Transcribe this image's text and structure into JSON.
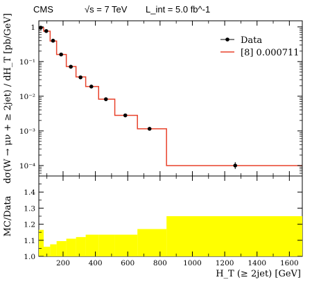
{
  "header": {
    "experiment": "CMS",
    "energy": "√s = 7 TeV",
    "lumi": "L_int = 5.0 fb^-1"
  },
  "chart_data": [
    {
      "type": "line",
      "panel": "main",
      "ylabel": "dσ(W → μν + ≥ 2jet) / dH_T [pb/GeV]",
      "yscale": "log",
      "ylim": [
        5e-05,
        1.5
      ],
      "xlim": [
        50,
        1680
      ],
      "legend_position": "top-right",
      "y_ticks": [
        {
          "value": 1,
          "label": "1"
        },
        {
          "value": 0.1,
          "label": "10⁻¹"
        },
        {
          "value": 0.01,
          "label": "10⁻²"
        },
        {
          "value": 0.001,
          "label": "10⁻³"
        },
        {
          "value": 0.0001,
          "label": "10⁻⁴"
        }
      ],
      "legend": [
        {
          "label": "Data",
          "marker": "point-with-errorbar",
          "color": "#000000"
        },
        {
          "label": "[8] 0.000711",
          "marker": "line",
          "color": "#e8412a"
        }
      ],
      "series": [
        {
          "name": "[8] 0.000711",
          "kind": "step",
          "color": "#e8412a",
          "bins": [
            {
              "x0": 50,
              "x1": 80,
              "y": 0.95
            },
            {
              "x0": 80,
              "x1": 120,
              "y": 0.75
            },
            {
              "x0": 120,
              "x1": 160,
              "y": 0.39
            },
            {
              "x0": 160,
              "x1": 220,
              "y": 0.16
            },
            {
              "x0": 220,
              "x1": 280,
              "y": 0.072
            },
            {
              "x0": 280,
              "x1": 340,
              "y": 0.036
            },
            {
              "x0": 340,
              "x1": 420,
              "y": 0.019
            },
            {
              "x0": 420,
              "x1": 520,
              "y": 0.0082
            },
            {
              "x0": 520,
              "x1": 660,
              "y": 0.0028
            },
            {
              "x0": 660,
              "x1": 840,
              "y": 0.00115
            },
            {
              "x0": 840,
              "x1": 1680,
              "y": 0.0001
            }
          ]
        },
        {
          "name": "Data",
          "kind": "points",
          "color": "#000000",
          "points": [
            {
              "x": 62,
              "y": 0.95
            },
            {
              "x": 96,
              "y": 0.76
            },
            {
              "x": 138,
              "y": 0.4
            },
            {
              "x": 188,
              "y": 0.16
            },
            {
              "x": 248,
              "y": 0.071
            },
            {
              "x": 308,
              "y": 0.035
            },
            {
              "x": 375,
              "y": 0.019
            },
            {
              "x": 465,
              "y": 0.0082
            },
            {
              "x": 585,
              "y": 0.0028
            },
            {
              "x": 735,
              "y": 0.00115
            },
            {
              "x": 1265,
              "y": 0.0001
            }
          ]
        }
      ]
    },
    {
      "type": "area",
      "panel": "ratio",
      "ylabel": "MC/Data",
      "xlabel": "H_T (≥ 2jet) [GeV]",
      "ylim": [
        1.0,
        1.5
      ],
      "xlim": [
        50,
        1680
      ],
      "y_ticks": [
        1.0,
        1.1,
        1.2,
        1.3,
        1.4
      ],
      "y_tick_labels": [
        "1.0",
        "1.1",
        "1.2",
        "1.3",
        "1.4"
      ],
      "x_ticks": [
        200,
        400,
        600,
        800,
        1000,
        1200,
        1400,
        1600
      ],
      "x_tick_labels": [
        "200",
        "400",
        "600",
        "800",
        "1000",
        "1200",
        "1400",
        "1600"
      ],
      "band_color": "#ffff00",
      "band": [
        {
          "x0": 50,
          "x1": 80,
          "lo": 1.0,
          "hi": 1.165
        },
        {
          "x0": 80,
          "x1": 120,
          "lo": 1.0,
          "hi": 1.06
        },
        {
          "x0": 120,
          "x1": 160,
          "lo": 1.0,
          "hi": 1.075
        },
        {
          "x0": 160,
          "x1": 220,
          "lo": 1.0,
          "hi": 1.095
        },
        {
          "x0": 220,
          "x1": 280,
          "lo": 1.0,
          "hi": 1.11
        },
        {
          "x0": 280,
          "x1": 340,
          "lo": 1.0,
          "hi": 1.12
        },
        {
          "x0": 340,
          "x1": 420,
          "lo": 1.0,
          "hi": 1.135
        },
        {
          "x0": 420,
          "x1": 520,
          "lo": 1.0,
          "hi": 1.135
        },
        {
          "x0": 520,
          "x1": 660,
          "lo": 1.0,
          "hi": 1.135
        },
        {
          "x0": 660,
          "x1": 840,
          "lo": 1.0,
          "hi": 1.17
        },
        {
          "x0": 840,
          "x1": 1680,
          "lo": 1.0,
          "hi": 1.25
        }
      ]
    }
  ]
}
